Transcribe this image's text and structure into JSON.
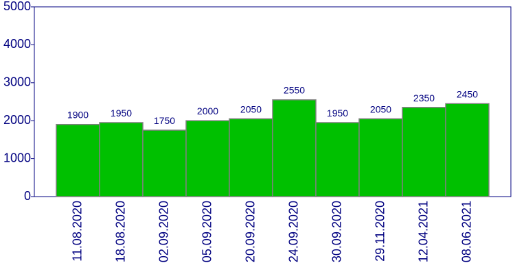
{
  "chart_data": {
    "type": "bar",
    "categories": [
      "11.08.2020",
      "18.08.2020",
      "02.09.2020",
      "05.09.2020",
      "20.09.2020",
      "24.09.2020",
      "30.09.2020",
      "29.11.2020",
      "12.04.2021",
      "08.06.2021"
    ],
    "values": [
      1900,
      1950,
      1750,
      2000,
      2050,
      2550,
      1950,
      2050,
      2350,
      2450
    ],
    "color": "#00c000",
    "ylim": [
      0,
      5000
    ],
    "yticks": [
      0,
      1000,
      2000,
      3000,
      4000,
      5000
    ],
    "grid": false
  }
}
